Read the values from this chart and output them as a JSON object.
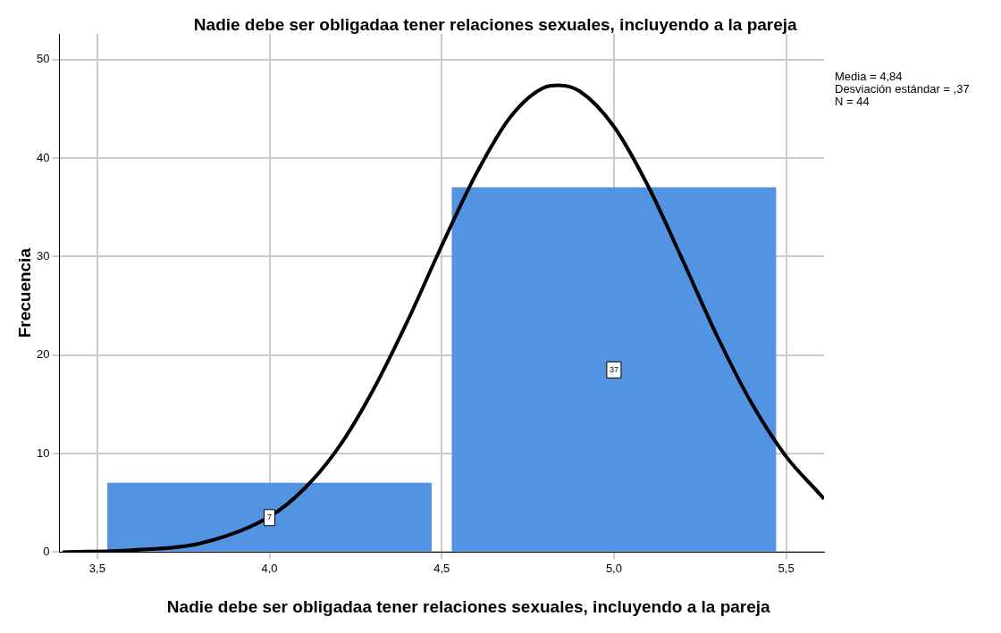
{
  "chart_data": {
    "type": "histogram",
    "title": "Nadie debe ser obligadaa tener relaciones sexuales, incluyendo a la pareja",
    "xlabel": "Nadie debe ser obligadaa tener relaciones sexuales, incluyendo a la pareja",
    "ylabel": "Frecuencia",
    "bins": [
      3.5,
      4.5,
      5.5
    ],
    "values": [
      7,
      37
    ],
    "color": "#5294e2",
    "value_labels": [
      "7",
      "37"
    ],
    "series": [
      {
        "type": "line",
        "color": "#000000",
        "x": [
          3.4,
          3.6,
          3.8,
          4.0,
          4.1,
          4.2,
          4.3,
          4.4,
          4.5,
          4.6,
          4.7,
          4.8,
          4.84,
          4.9,
          5.0,
          5.1,
          5.2,
          5.3,
          5.4,
          5.5,
          5.6,
          5.61
        ],
        "values": [
          0.0,
          0.2,
          0.9,
          3.6,
          6.4,
          10.6,
          16.4,
          23.4,
          31.1,
          38.4,
          44.2,
          47.2,
          47.4,
          46.8,
          43.2,
          37.1,
          29.6,
          21.9,
          15.1,
          9.7,
          5.8,
          5.4
        ]
      }
    ],
    "xlim": [
      3.39,
      5.61
    ],
    "xticks": [
      {
        "value": 3.5,
        "label": "3,5"
      },
      {
        "value": 4.0,
        "label": "4,0"
      },
      {
        "value": 4.5,
        "label": "4,5"
      },
      {
        "value": 5.0,
        "label": "5,0"
      },
      {
        "value": 5.5,
        "label": "5,5"
      }
    ],
    "ylim": [
      0,
      52.6
    ],
    "yticks": [
      0,
      10,
      20,
      30,
      40,
      50
    ],
    "grid": true,
    "annotations": [
      "Media = 4,84",
      "Desviación estándar = ,37",
      "N = 44"
    ]
  }
}
